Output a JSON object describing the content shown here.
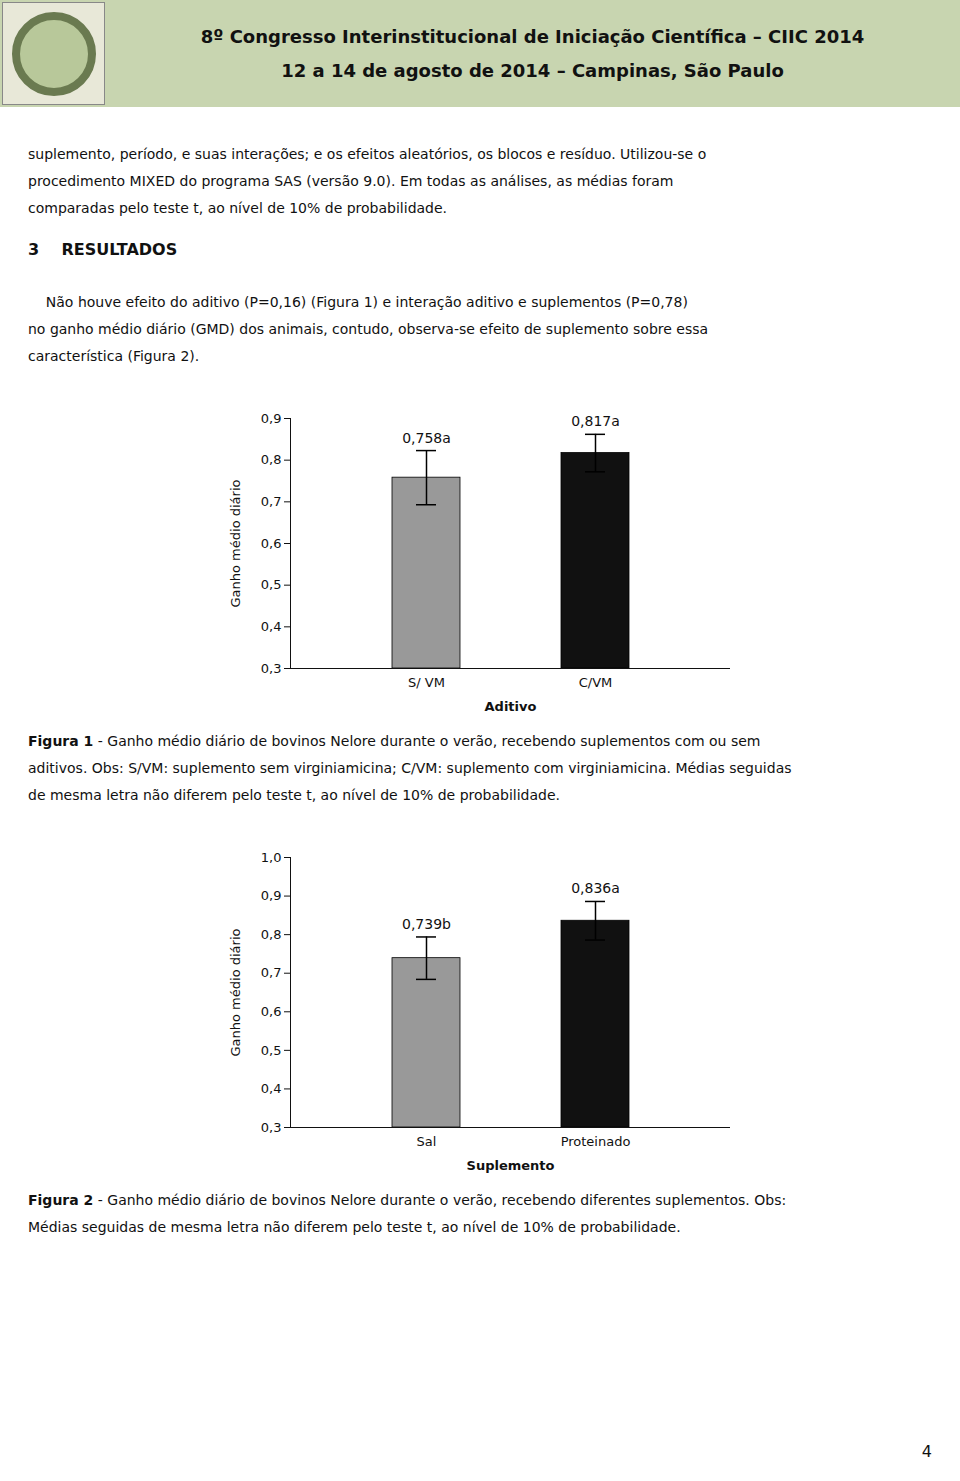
{
  "title": [
    "8º Congresso Interinstitucional de Iniciação Científica – CIIC 2014",
    "12 a 14 de agosto de 2014 – Campinas, São Paulo"
  ],
  "annotations": [
    "suplemento, período, e suas interações; e os efeitos aleatórios, os blocos e resíduo.  Utilizou-se o",
    "procedimento MIXED do programa SAS (versão 9.0). Em todas as análises, as médias foram",
    "comparadas pelo teste t,  ao nível de 10% de probabilidade."
  ],
  "section_title": "3    RESULTADOS",
  "section_text": [
    "    Não houve efeito do aditivo (P=0,16) (Figura 1) e interação aditivo e suplementos (P=0,78)",
    "no ganho médio diário (GMD) dos animais, contudo, observa-se efeito de suplemento sobre essa",
    "característica (Figura 2)."
  ],
  "page_number": "4",
  "chart_data": [
    {
      "type": "bar",
      "caption_label": "Figura 1",
      "caption": [
        "- Ganho médio diário de bovinos Nelore durante o verão, recebendo suplementos com ou sem",
        "aditivos. Obs: S/VM: suplemento sem virginiamicina; C/VM: suplemento com virginiamicina. Médias seguidas",
        "de mesma letra não diferem pelo teste t, ao nível de 10% de probabilidade."
      ],
      "xlabel": "Aditivo",
      "ylabel": "Ganho médio diário",
      "categories": [
        "S/ VM",
        "C/VM"
      ],
      "values": [
        0.758,
        0.817
      ],
      "errors": [
        0.065,
        0.045
      ],
      "colors": [
        "#999999",
        "#111111"
      ],
      "data_labels": true,
      "value_labels": [
        "0,758a",
        "0,817a"
      ],
      "ylim": [
        0.3,
        0.9
      ],
      "yticks": [
        {
          "value": 0.3,
          "label": "0,3"
        },
        {
          "value": 0.4,
          "label": "0,4"
        },
        {
          "value": 0.5,
          "label": "0,5"
        },
        {
          "value": 0.6,
          "label": "0,6"
        },
        {
          "value": 0.7,
          "label": "0,7"
        },
        {
          "value": 0.8,
          "label": "0,8"
        },
        {
          "value": 0.9,
          "label": "0,9"
        }
      ],
      "grid": false
    },
    {
      "type": "bar",
      "caption_label": "Figura 2",
      "caption": [
        "- Ganho médio diário de bovinos Nelore durante o verão, recebendo diferentes suplementos. Obs:",
        "Médias seguidas de mesma letra não diferem pelo teste t, ao nível de 10% de probabilidade."
      ],
      "xlabel": "Suplemento",
      "ylabel": "Ganho médio diário",
      "categories": [
        "Sal",
        "Proteinado"
      ],
      "values": [
        0.739,
        0.836
      ],
      "errors": [
        0.055,
        0.05
      ],
      "colors": [
        "#999999",
        "#111111"
      ],
      "data_labels": true,
      "value_labels": [
        "0,739b",
        "0,836a"
      ],
      "ylim": [
        0.3,
        1.0
      ],
      "yticks": [
        {
          "value": 0.3,
          "label": "0,3"
        },
        {
          "value": 0.4,
          "label": "0,4"
        },
        {
          "value": 0.5,
          "label": "0,5"
        },
        {
          "value": 0.6,
          "label": "0,6"
        },
        {
          "value": 0.7,
          "label": "0,7"
        },
        {
          "value": 0.8,
          "label": "0,8"
        },
        {
          "value": 0.9,
          "label": "0,9"
        },
        {
          "value": 1.0,
          "label": "1,0"
        }
      ],
      "grid": false
    }
  ]
}
